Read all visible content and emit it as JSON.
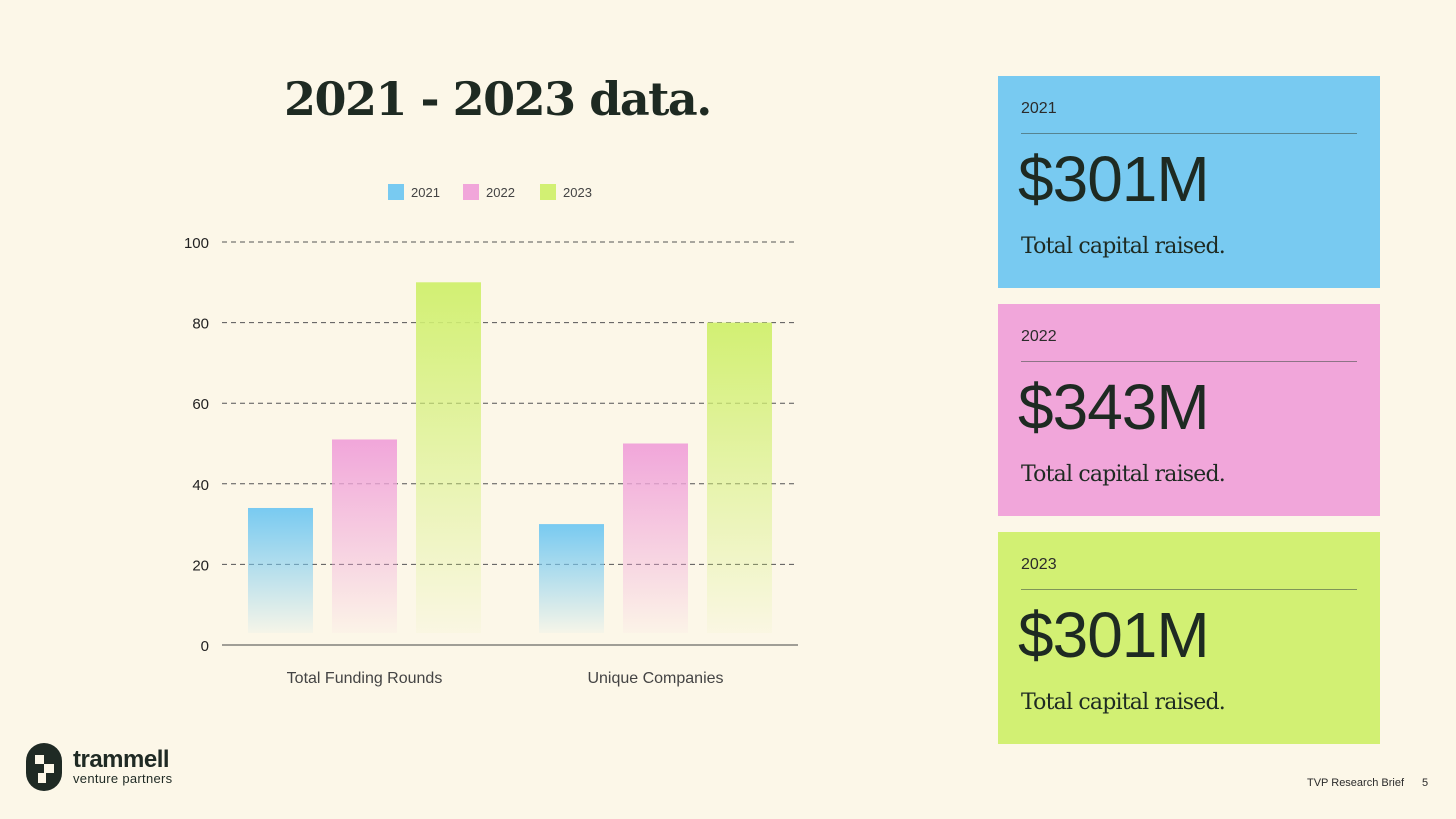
{
  "title": "2021 - 2023 data.",
  "chart_data": {
    "type": "bar",
    "title": "",
    "categories": [
      "Total Funding Rounds",
      "Unique Companies"
    ],
    "series": [
      {
        "name": "2021",
        "values": [
          34,
          30
        ],
        "color": "#78caf1"
      },
      {
        "name": "2022",
        "values": [
          51,
          50
        ],
        "color": "#f1a6da"
      },
      {
        "name": "2023",
        "values": [
          90,
          80
        ],
        "color": "#d2f073"
      }
    ],
    "y_ticks": [
      0,
      20,
      40,
      60,
      80,
      100
    ],
    "ylim": [
      0,
      100
    ],
    "xlabel": "",
    "ylabel": "",
    "grid": "dashed horizontal",
    "legend": "top"
  },
  "cards": [
    {
      "year": "2021",
      "amount": "$301M",
      "caption": "Total capital raised.",
      "color": "#78caf1"
    },
    {
      "year": "2022",
      "amount": "$343M",
      "caption": "Total capital raised.",
      "color": "#f1a6da"
    },
    {
      "year": "2023",
      "amount": "$301M",
      "caption": "Total capital raised.",
      "color": "#d2f073"
    }
  ],
  "logo": {
    "name": "trammell",
    "sub": "venture partners"
  },
  "footer": {
    "text": "TVP Research Brief",
    "page": "5"
  }
}
